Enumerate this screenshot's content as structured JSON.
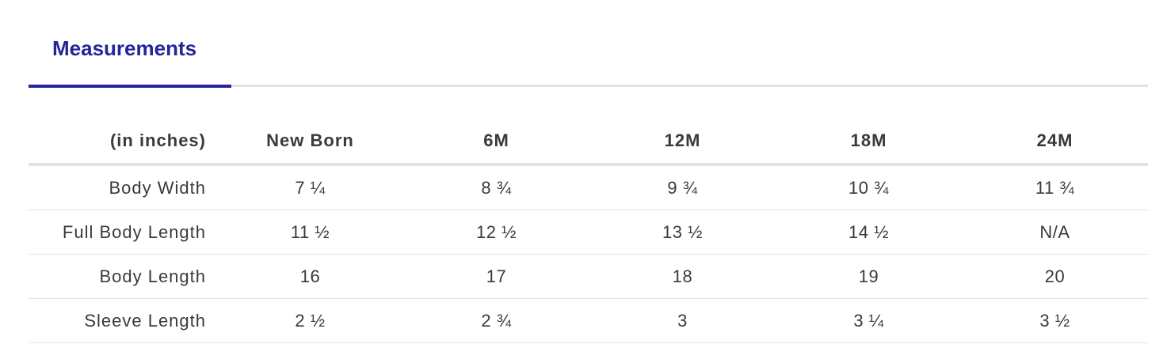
{
  "tabs": {
    "active_label": "Measurements"
  },
  "table": {
    "header": [
      "(in inches)",
      "New Born",
      "6M",
      "12M",
      "18M",
      "24M"
    ],
    "rows": [
      {
        "label": "Body Width",
        "values": [
          "7 ¼",
          "8 ¾",
          "9 ¾",
          "10 ¾",
          "11 ¾"
        ]
      },
      {
        "label": "Full Body Length",
        "values": [
          "11 ½",
          "12 ½",
          "13 ½",
          "14 ½",
          "N/A"
        ]
      },
      {
        "label": "Body Length",
        "values": [
          "16",
          "17",
          "18",
          "19",
          "20"
        ]
      },
      {
        "label": "Sleeve Length",
        "values": [
          "2 ½",
          "2 ¾",
          "3",
          "3 ¼",
          "3 ½"
        ]
      }
    ]
  },
  "colors": {
    "accent": "#23259a",
    "text": "#3a3a3a",
    "rule": "#e2e2e2",
    "background": "#ffffff"
  }
}
